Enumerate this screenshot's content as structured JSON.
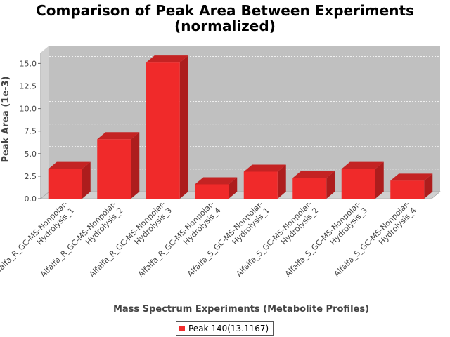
{
  "chart_data": {
    "type": "bar",
    "title_line1": "Comparison of Peak Area Between Experiments",
    "title_line2": "(normalized)",
    "xlabel": "Mass Spectrum Experiments (Metabolite Profiles)",
    "ylabel": "Peak Area (1e-3)",
    "ylim": [
      0,
      16.2
    ],
    "yticks": [
      "0.0",
      "2.5",
      "5.0",
      "7.5",
      "10.0",
      "12.5",
      "15.0"
    ],
    "ytick_values": [
      0,
      2.5,
      5.0,
      7.5,
      10.0,
      12.5,
      15.0
    ],
    "categories": [
      [
        "Alfalfa_R_GC-MS-Nonpolar-",
        "Hydrolysis_1"
      ],
      [
        "Alfalfa_R_GC-MS-Nonpolar-",
        "Hydrolysis_2"
      ],
      [
        "Alfalfa_R_GC-MS-Nonpolar-",
        "Hydrolysis_3"
      ],
      [
        "Alfalfa_R_GC-MS-Nonpolar-",
        "Hydrolysis_4"
      ],
      [
        "Alfalfa_S_GC-MS-Nonpolar-",
        "Hydrolysis_1"
      ],
      [
        "Alfalfa_S_GC-MS-Nonpolar-",
        "Hydrolysis_2"
      ],
      [
        "Alfalfa_S_GC-MS-Nonpolar-",
        "Hydrolysis_3"
      ],
      [
        "Alfalfa_S_GC-MS-Nonpolar-",
        "Hydrolysis_4"
      ]
    ],
    "series": [
      {
        "name": "Peak 140(13.1167)",
        "values": [
          3.3,
          6.6,
          15.1,
          1.6,
          3.0,
          2.3,
          3.3,
          2.0
        ]
      }
    ],
    "grid": true,
    "legend_position": "bottom",
    "colors": {
      "bar": "#f02a2a",
      "bar_top": "#c42323",
      "bar_side": "#ad1d1d",
      "plot_bg": "#c0c0c0",
      "wall": "#d0d0d0"
    }
  }
}
